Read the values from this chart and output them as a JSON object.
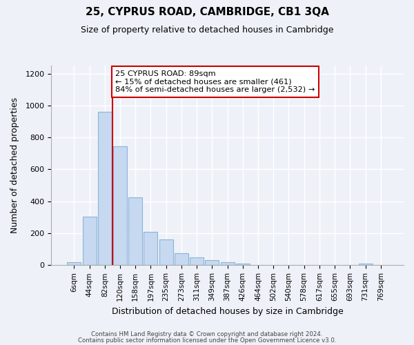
{
  "title": "25, CYPRUS ROAD, CAMBRIDGE, CB1 3QA",
  "subtitle": "Size of property relative to detached houses in Cambridge",
  "xlabel": "Distribution of detached houses by size in Cambridge",
  "ylabel": "Number of detached properties",
  "footer_lines": [
    "Contains HM Land Registry data © Crown copyright and database right 2024.",
    "Contains public sector information licensed under the Open Government Licence v3.0."
  ],
  "bin_labels": [
    "6sqm",
    "44sqm",
    "82sqm",
    "120sqm",
    "158sqm",
    "197sqm",
    "235sqm",
    "273sqm",
    "311sqm",
    "349sqm",
    "387sqm",
    "426sqm",
    "464sqm",
    "502sqm",
    "540sqm",
    "578sqm",
    "617sqm",
    "655sqm",
    "693sqm",
    "731sqm",
    "769sqm"
  ],
  "bar_values": [
    20,
    305,
    960,
    745,
    425,
    210,
    160,
    75,
    48,
    32,
    18,
    10,
    0,
    0,
    0,
    0,
    0,
    0,
    0,
    8,
    0
  ],
  "bar_color": "#c6d9f0",
  "bar_edge_color": "#8cb3d9",
  "vline_x": 2.5,
  "vline_color": "#cc0000",
  "annotation_title": "25 CYPRUS ROAD: 89sqm",
  "annotation_line1": "← 15% of detached houses are smaller (461)",
  "annotation_line2": "84% of semi-detached houses are larger (2,532) →",
  "annotation_box_color": "#ffffff",
  "annotation_box_edge": "#cc0000",
  "ylim": [
    0,
    1250
  ],
  "yticks": [
    0,
    200,
    400,
    600,
    800,
    1000,
    1200
  ],
  "background_color": "#eef2f8"
}
